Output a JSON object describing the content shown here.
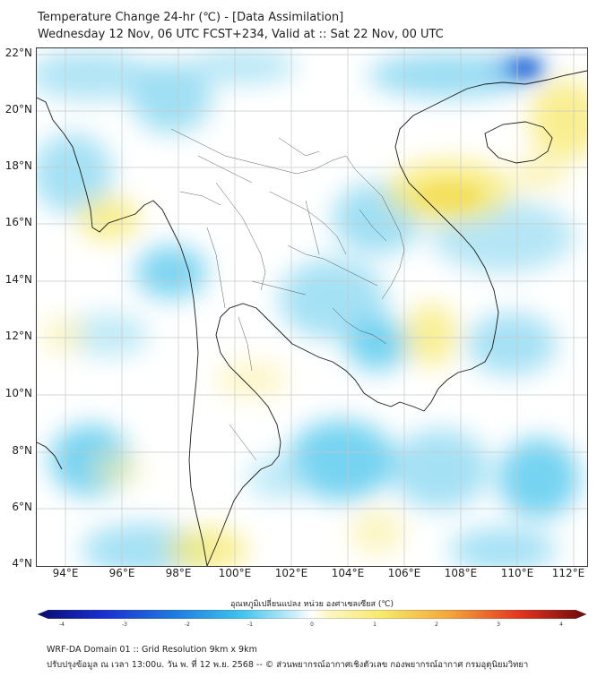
{
  "title_line1": "Temperature Change 24-hr (℃) - [Data Assimilation]",
  "title_line2": "Wednesday 12 Nov, 06 UTC FCST+234, Valid at :: Sat 22 Nov, 00 UTC",
  "lat_labels": [
    "22°N",
    "20°N",
    "18°N",
    "16°N",
    "14°N",
    "12°N",
    "10°N",
    "8°N",
    "6°N",
    "4°N"
  ],
  "lon_labels": [
    "94°E",
    "96°E",
    "98°E",
    "100°E",
    "102°E",
    "104°E",
    "106°E",
    "108°E",
    "110°E",
    "112°E"
  ],
  "colorbar": {
    "title": "อุณหภูมิเปลี่ยนแปลง หน่วย องศาเซลเซียส (℃)",
    "ticks": [
      "-4",
      "-3",
      "-2",
      "-1",
      "0",
      "1",
      "2",
      "3",
      "4"
    ],
    "range": [
      -4,
      4
    ]
  },
  "footer_line1": "WRF-DA Domain 01 :: Grid Resolution 9km x 9km",
  "footer_line2": "ปรับปรุงข้อมูล ณ เวลา 13:00u. วัน พ. ที่ 12 พ.ย. 2568 -- © ส่วนพยากรณ์อากาศเชิงตัวเลข กองพยากรณ์อากาศ กรมอุตุนิยมวิทยา",
  "map": {
    "lat_range": [
      4,
      22
    ],
    "lon_range": [
      93,
      112.5
    ],
    "colors": {
      "cool": "#5ecbee",
      "deep_cool": "#1f5bd6",
      "warm": "#f7e86a",
      "neutral": "#ffffff",
      "coast": "#1a1a1a",
      "grid": "#bfbfbf"
    }
  }
}
